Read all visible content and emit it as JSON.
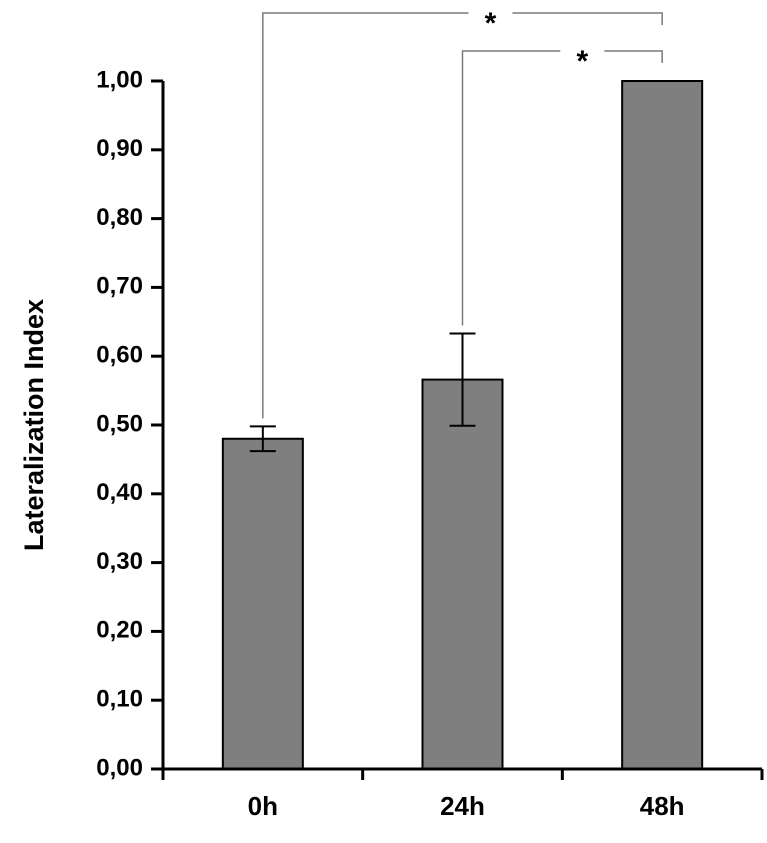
{
  "chart_data": {
    "type": "bar",
    "title": "",
    "xlabel": "",
    "ylabel": "Lateralization Index",
    "categories": [
      "0h",
      "24h",
      "48h"
    ],
    "values": [
      0.48,
      0.566,
      1.0
    ],
    "error": [
      0.018,
      0.067,
      0
    ],
    "ylim": [
      0,
      1.0
    ],
    "yticks": [
      "0,00",
      "0,10",
      "0,20",
      "0,30",
      "0,40",
      "0,50",
      "0,60",
      "0,70",
      "0,80",
      "0,90",
      "1,00"
    ],
    "grid": false,
    "legend": "none",
    "bar_color": "#7f7f7f",
    "significance": [
      {
        "from": "0h",
        "to": "48h",
        "label": "*"
      },
      {
        "from": "24h",
        "to": "48h",
        "label": "*"
      }
    ]
  }
}
